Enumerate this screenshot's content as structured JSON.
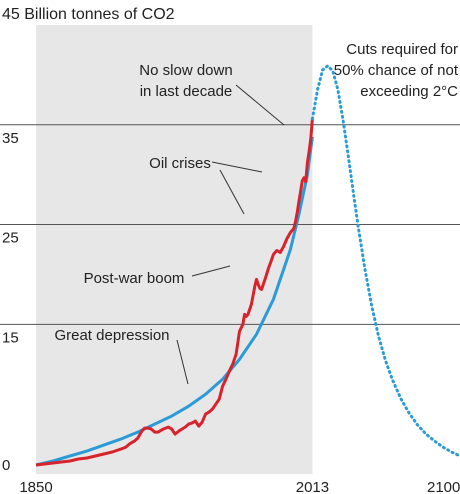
{
  "chart_data": {
    "type": "line",
    "title": "45 Billion tonnes of CO2",
    "ylim": [
      0,
      45
    ],
    "xlim": [
      1850,
      2100
    ],
    "y_ticks": [
      {
        "value": 35,
        "label": "35"
      },
      {
        "value": 25,
        "label": "25"
      },
      {
        "value": 15,
        "label": "15"
      },
      {
        "value": 0,
        "label": "0"
      }
    ],
    "x_ticks": [
      {
        "value": 1850,
        "label": "1850"
      },
      {
        "value": 2013,
        "label": "2013"
      },
      {
        "value": 2100,
        "label": "2100"
      }
    ],
    "grid": true,
    "shaded_period": [
      1850,
      2013
    ],
    "colors": {
      "observed": "#d7232b",
      "trend": "#2b9bd8",
      "shade": "#e7e7e7",
      "grid": "#555555"
    },
    "series": [
      {
        "key": "observed",
        "x": [
          1850,
          1855,
          1860,
          1865,
          1870,
          1875,
          1880,
          1885,
          1890,
          1895,
          1900,
          1903,
          1905,
          1908,
          1910,
          1912,
          1914,
          1916,
          1918,
          1920,
          1922,
          1925,
          1928,
          1930,
          1932,
          1935,
          1938,
          1940,
          1942,
          1944,
          1946,
          1948,
          1950,
          1952,
          1954,
          1956,
          1958,
          1960,
          1962,
          1964,
          1966,
          1968,
          1970,
          1972,
          1973,
          1974,
          1975,
          1977,
          1979,
          1980,
          1981,
          1982,
          1983,
          1985,
          1987,
          1989,
          1990,
          1992,
          1994,
          1996,
          1998,
          2000,
          2001,
          2002,
          2003,
          2004,
          2005,
          2006,
          2007,
          2008,
          2009,
          2010,
          2011,
          2012,
          2013
        ],
        "y": [
          0.9,
          1.0,
          1.1,
          1.2,
          1.3,
          1.5,
          1.6,
          1.8,
          2.0,
          2.2,
          2.5,
          2.7,
          3.0,
          3.3,
          3.6,
          4.2,
          4.6,
          4.6,
          4.5,
          4.2,
          4.2,
          4.5,
          4.7,
          4.5,
          4.0,
          4.4,
          4.7,
          5.0,
          5.1,
          5.3,
          4.8,
          5.2,
          6.0,
          6.2,
          6.5,
          7.0,
          7.5,
          8.8,
          9.5,
          10.3,
          11.0,
          12.0,
          14.3,
          15.0,
          16.0,
          15.8,
          16.0,
          17.0,
          18.8,
          19.5,
          19.0,
          18.6,
          18.5,
          19.5,
          20.6,
          21.5,
          22.0,
          22.4,
          22.2,
          22.8,
          23.6,
          24.2,
          24.4,
          24.6,
          25.3,
          26.2,
          27.3,
          28.3,
          29.4,
          29.7,
          29.3,
          31.2,
          32.3,
          33.6,
          35.6
        ]
      },
      {
        "key": "trend",
        "x": [
          1850,
          1860,
          1870,
          1880,
          1890,
          1900,
          1910,
          1920,
          1930,
          1940,
          1950,
          1960,
          1970,
          1980,
          1990,
          2000,
          2005,
          2010,
          2013
        ],
        "y": [
          0.9,
          1.3,
          1.8,
          2.3,
          2.9,
          3.5,
          4.2,
          5.0,
          5.8,
          6.8,
          8.0,
          9.5,
          11.5,
          14.0,
          17.5,
          22.5,
          26.0,
          30.0,
          33.8
        ]
      },
      {
        "key": "cuts",
        "x": [
          2013,
          2016,
          2019,
          2022,
          2025,
          2028,
          2031,
          2034,
          2037,
          2040,
          2044,
          2048,
          2052,
          2056,
          2060,
          2065,
          2070,
          2075,
          2080,
          2085,
          2090,
          2095,
          2100
        ],
        "y": [
          35.6,
          38.5,
          40.5,
          40.9,
          40.4,
          38.5,
          35.5,
          32.0,
          28.3,
          24.8,
          20.5,
          16.8,
          13.8,
          11.4,
          9.5,
          7.6,
          6.1,
          4.9,
          4.0,
          3.3,
          2.7,
          2.2,
          1.8
        ]
      }
    ],
    "annotations": [
      {
        "key": "cuts",
        "lines": [
          "Cuts required for",
          "50% chance of not",
          "exceeding 2°C"
        ]
      },
      {
        "key": "noslow",
        "lines": [
          "No slow down",
          "in last decade"
        ]
      },
      {
        "key": "oil",
        "lines": [
          "Oil crises"
        ]
      },
      {
        "key": "postwar",
        "lines": [
          "Post-war boom"
        ]
      },
      {
        "key": "depression",
        "lines": [
          "Great depression"
        ]
      }
    ]
  }
}
